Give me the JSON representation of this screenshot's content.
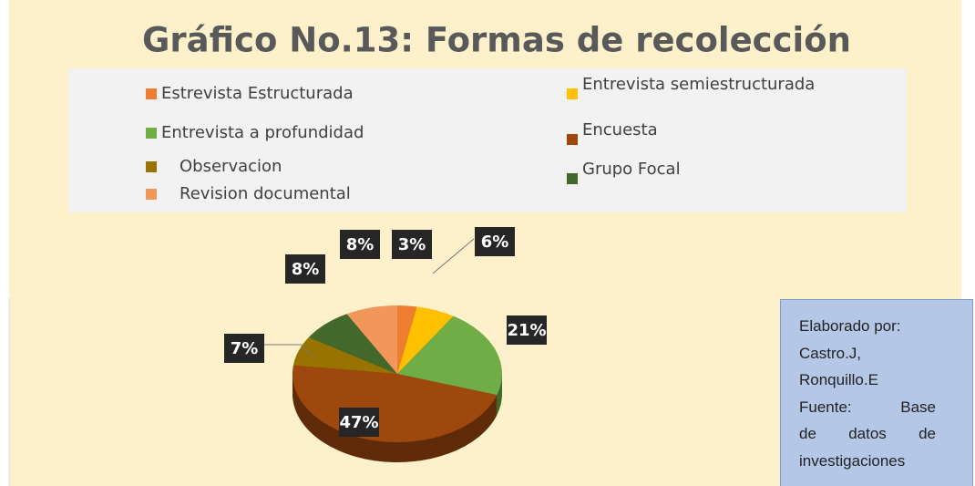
{
  "chart_data": {
    "type": "pie",
    "title": "Gráfico No.13: Formas de recolección",
    "categories": [
      "Estrevista Estructurada",
      "Entrevista semiestructurada",
      "Entrevista a profundidad",
      "Encuesta",
      "Observacion",
      "Grupo Focal",
      "Revision documental"
    ],
    "values": [
      3,
      6,
      21,
      47,
      7,
      8,
      8
    ],
    "value_labels": [
      "3%",
      "6%",
      "21%",
      "47%",
      "7%",
      "8%",
      "8%"
    ],
    "colors": [
      "#ed7d31",
      "#ffc000",
      "#70ad47",
      "#9e480e",
      "#997300",
      "#43682b",
      "#f1975a"
    ],
    "note": [
      "Elaborado por:",
      "Castro.J,",
      "Ronquillo.E",
      "Fuente: Base",
      "de datos de",
      "investigaciones"
    ]
  }
}
